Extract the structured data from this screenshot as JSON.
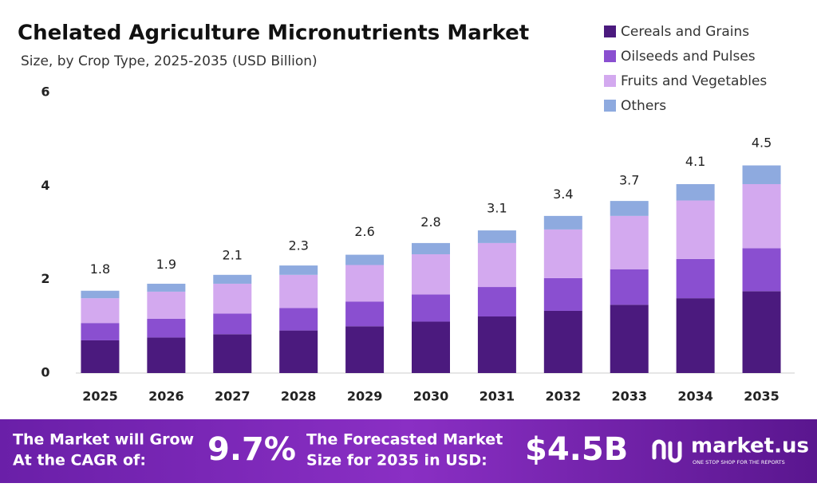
{
  "chart_data": {
    "type": "stacked-bar",
    "title": "Chelated Agriculture Micronutrients Market",
    "subtitle": "Size, by Crop Type, 2025-2035 (USD Billion)",
    "categories": [
      "2025",
      "2026",
      "2027",
      "2028",
      "2029",
      "2030",
      "2031",
      "2032",
      "2033",
      "2034",
      "2035"
    ],
    "series": [
      {
        "name": "Cereals and Grains",
        "color": "#4b1a7e",
        "values": [
          0.7,
          0.76,
          0.83,
          0.91,
          1.0,
          1.1,
          1.21,
          1.33,
          1.46,
          1.6,
          1.75
        ]
      },
      {
        "name": "Oilseeds and Pulses",
        "color": "#8a4fd0",
        "values": [
          0.37,
          0.4,
          0.44,
          0.48,
          0.53,
          0.58,
          0.63,
          0.7,
          0.76,
          0.84,
          0.92
        ]
      },
      {
        "name": "Fruits and Vegetables",
        "color": "#d3a9ef",
        "values": [
          0.53,
          0.58,
          0.64,
          0.71,
          0.78,
          0.86,
          0.94,
          1.04,
          1.14,
          1.25,
          1.37
        ]
      },
      {
        "name": "Others",
        "color": "#8eaadf",
        "values": [
          0.16,
          0.17,
          0.19,
          0.2,
          0.22,
          0.24,
          0.27,
          0.29,
          0.32,
          0.35,
          0.4
        ]
      }
    ],
    "totals": [
      1.8,
      1.9,
      2.1,
      2.3,
      2.6,
      2.8,
      3.1,
      3.4,
      3.7,
      4.1,
      4.5
    ],
    "ylim": [
      0,
      6
    ],
    "yticks": [
      0,
      2,
      4,
      6
    ],
    "grid": false,
    "legend": "top-right"
  },
  "footer": {
    "cagr_label": [
      "The Market will Grow",
      "At the CAGR of:"
    ],
    "cagr": "9.7%",
    "forecast_label": [
      "The Forecasted Market",
      "Size for 2035 in USD:"
    ],
    "forecast": "$4.5B",
    "brand": "market.us",
    "tagline": "ONE STOP SHOP FOR THE REPORTS"
  }
}
